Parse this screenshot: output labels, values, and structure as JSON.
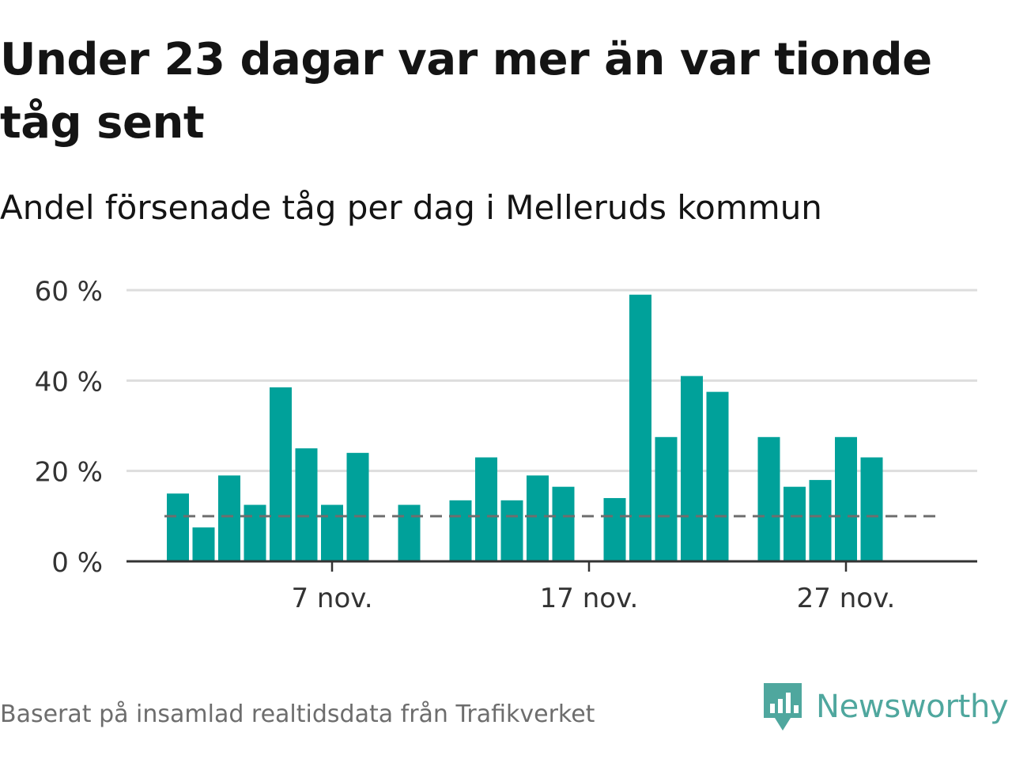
{
  "header": {
    "title": "Under 23 dagar var mer än var tionde tåg sent",
    "subtitle": "Andel försenade tåg per dag i Melleruds kommun"
  },
  "footer": {
    "source": "Baserat på insamlad realtidsdata från Trafikverket",
    "brand": "Newsworthy"
  },
  "colors": {
    "bar": "#00a19a",
    "reference_line": "#6e6e6e",
    "grid": "#dddddd",
    "axis": "#333333",
    "brand": "#4fa79e"
  },
  "chart_data": {
    "type": "bar",
    "x": [
      "2021-11-01",
      "2021-11-02",
      "2021-11-03",
      "2021-11-04",
      "2021-11-05",
      "2021-11-06",
      "2021-11-07",
      "2021-11-08",
      "2021-11-09",
      "2021-11-10",
      "2021-11-11",
      "2021-11-12",
      "2021-11-13",
      "2021-11-14",
      "2021-11-15",
      "2021-11-16",
      "2021-11-17",
      "2021-11-18",
      "2021-11-19",
      "2021-11-20",
      "2021-11-21",
      "2021-11-22",
      "2021-11-23",
      "2021-11-24",
      "2021-11-25",
      "2021-11-26",
      "2021-11-27",
      "2021-11-28",
      "2021-11-29",
      "2021-11-30"
    ],
    "values": [
      15,
      7.5,
      19,
      12.5,
      38.5,
      25,
      12.5,
      24,
      null,
      12.5,
      null,
      13.5,
      23,
      13.5,
      19,
      16.5,
      null,
      14,
      59,
      27.5,
      41,
      37.5,
      null,
      27.5,
      16.5,
      18,
      27.5,
      23,
      null,
      null
    ],
    "reference_line": 10,
    "ylim": [
      0,
      60
    ],
    "yticks": [
      0,
      20,
      40,
      60
    ],
    "ytick_labels": [
      "0 %",
      "20 %",
      "40 %",
      "60 %"
    ],
    "xtick_labels": [
      {
        "x": "2021-11-07",
        "label": "7 nov."
      },
      {
        "x": "2021-11-17",
        "label": "17 nov."
      },
      {
        "x": "2021-11-27",
        "label": "27 nov."
      }
    ],
    "grid": true
  }
}
